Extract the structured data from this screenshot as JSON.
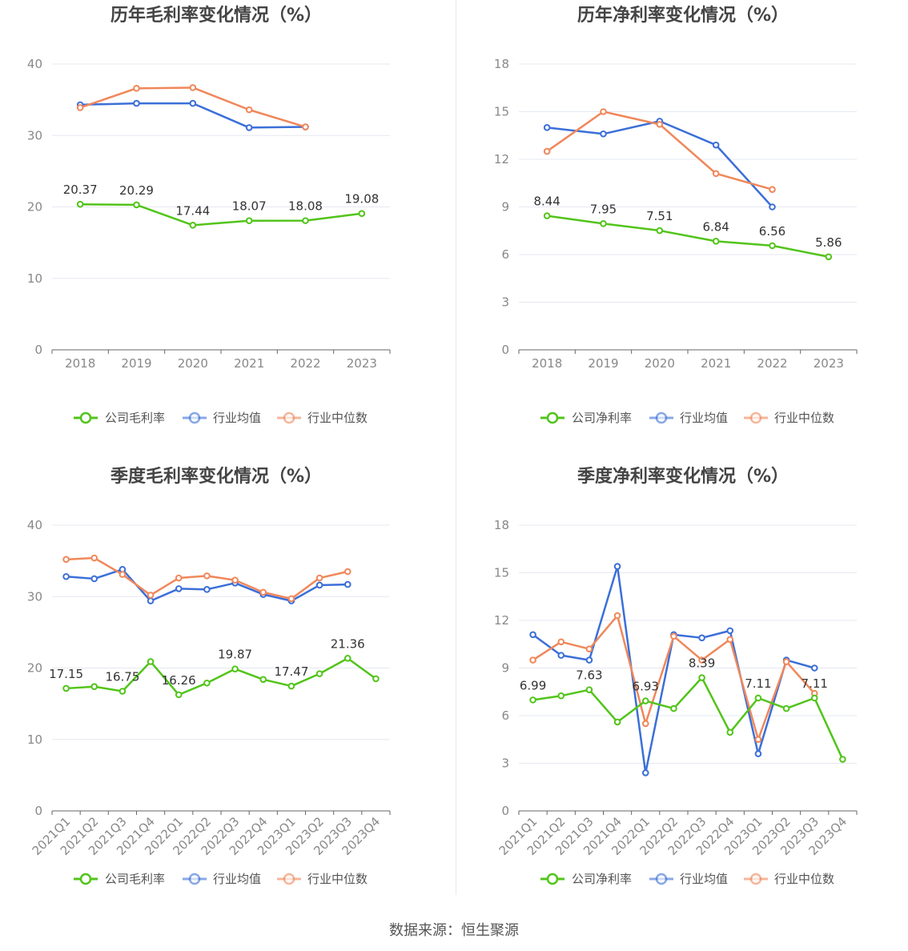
{
  "source_label": "数据来源：恒生聚源",
  "colors": {
    "company": "#52c41a",
    "avg": "#3b6fd8",
    "median": "#f0875a",
    "grid": "#e5e8f0",
    "axis": "#666666"
  },
  "chart_data": [
    {
      "id": "annual-gross",
      "type": "line",
      "title": "历年毛利率变化情况（%）",
      "categories": [
        "2018",
        "2019",
        "2020",
        "2021",
        "2022",
        "2023"
      ],
      "ylim": [
        0,
        40
      ],
      "yticks": [
        0,
        10,
        20,
        30,
        40
      ],
      "rotate_x": false,
      "series": [
        {
          "name": "公司毛利率",
          "key": "company",
          "values": [
            20.37,
            20.29,
            17.44,
            18.07,
            18.08,
            19.08
          ],
          "labels": [
            "20.37",
            "20.29",
            "17.44",
            "18.07",
            "18.08",
            "19.08"
          ]
        },
        {
          "name": "行业均值",
          "key": "avg",
          "values": [
            34.3,
            34.5,
            34.5,
            31.1,
            31.2,
            null
          ]
        },
        {
          "name": "行业中位数",
          "key": "median",
          "values": [
            33.9,
            36.6,
            36.7,
            33.6,
            31.2,
            null
          ]
        }
      ]
    },
    {
      "id": "annual-net",
      "type": "line",
      "title": "历年净利率变化情况（%）",
      "categories": [
        "2018",
        "2019",
        "2020",
        "2021",
        "2022",
        "2023"
      ],
      "ylim": [
        0,
        18
      ],
      "yticks": [
        0,
        3,
        6,
        9,
        12,
        15,
        18
      ],
      "rotate_x": false,
      "series": [
        {
          "name": "公司净利率",
          "key": "company",
          "values": [
            8.44,
            7.95,
            7.51,
            6.84,
            6.56,
            5.86
          ],
          "labels": [
            "8.44",
            "7.95",
            "7.51",
            "6.84",
            "6.56",
            "5.86"
          ]
        },
        {
          "name": "行业均值",
          "key": "avg",
          "values": [
            14.0,
            13.6,
            14.4,
            12.9,
            9.0,
            null
          ]
        },
        {
          "name": "行业中位数",
          "key": "median",
          "values": [
            12.5,
            15.0,
            14.2,
            11.1,
            10.1,
            null
          ]
        }
      ]
    },
    {
      "id": "quarterly-gross",
      "type": "line",
      "title": "季度毛利率变化情况（%）",
      "categories": [
        "2021Q1",
        "2021Q2",
        "2021Q3",
        "2021Q4",
        "2022Q1",
        "2022Q2",
        "2022Q3",
        "2022Q4",
        "2023Q1",
        "2023Q2",
        "2023Q3",
        "2023Q4"
      ],
      "ylim": [
        0,
        40
      ],
      "yticks": [
        0,
        10,
        20,
        30,
        40
      ],
      "rotate_x": true,
      "series": [
        {
          "name": "公司毛利率",
          "key": "company",
          "values": [
            17.15,
            17.4,
            16.75,
            20.9,
            16.26,
            17.9,
            19.87,
            18.4,
            17.47,
            19.2,
            21.36,
            18.5
          ],
          "labels": [
            "17.15",
            "",
            "16.75",
            "",
            "16.26",
            "",
            "19.87",
            "",
            "17.47",
            "",
            "21.36",
            ""
          ]
        },
        {
          "name": "行业均值",
          "key": "avg",
          "values": [
            32.8,
            32.5,
            33.8,
            29.4,
            31.1,
            31.0,
            31.9,
            30.3,
            29.4,
            31.6,
            31.7,
            null
          ]
        },
        {
          "name": "行业中位数",
          "key": "median",
          "values": [
            35.2,
            35.4,
            33.1,
            30.2,
            32.6,
            32.9,
            32.3,
            30.6,
            29.7,
            32.6,
            33.5,
            null
          ]
        }
      ]
    },
    {
      "id": "quarterly-net",
      "type": "line",
      "title": "季度净利率变化情况（%）",
      "categories": [
        "2021Q1",
        "2021Q2",
        "2021Q3",
        "2021Q4",
        "2022Q1",
        "2022Q2",
        "2022Q3",
        "2022Q4",
        "2023Q1",
        "2023Q2",
        "2023Q3",
        "2023Q4"
      ],
      "ylim": [
        0,
        18
      ],
      "yticks": [
        0,
        3,
        6,
        9,
        12,
        15,
        18
      ],
      "rotate_x": true,
      "series": [
        {
          "name": "公司净利率",
          "key": "company",
          "values": [
            6.99,
            7.25,
            7.63,
            5.6,
            6.93,
            6.45,
            8.39,
            4.95,
            7.11,
            6.45,
            7.11,
            3.25
          ],
          "labels": [
            "6.99",
            "",
            "7.63",
            "",
            "6.93",
            "",
            "8.39",
            "",
            "7.11",
            "",
            "7.11",
            ""
          ]
        },
        {
          "name": "行业均值",
          "key": "avg",
          "values": [
            11.1,
            9.8,
            9.5,
            15.4,
            2.4,
            11.1,
            10.9,
            11.35,
            3.6,
            9.5,
            9.0,
            null
          ]
        },
        {
          "name": "行业中位数",
          "key": "median",
          "values": [
            9.5,
            10.65,
            10.2,
            12.3,
            5.5,
            11.0,
            9.5,
            10.8,
            4.5,
            9.4,
            7.4,
            null
          ]
        }
      ]
    }
  ]
}
